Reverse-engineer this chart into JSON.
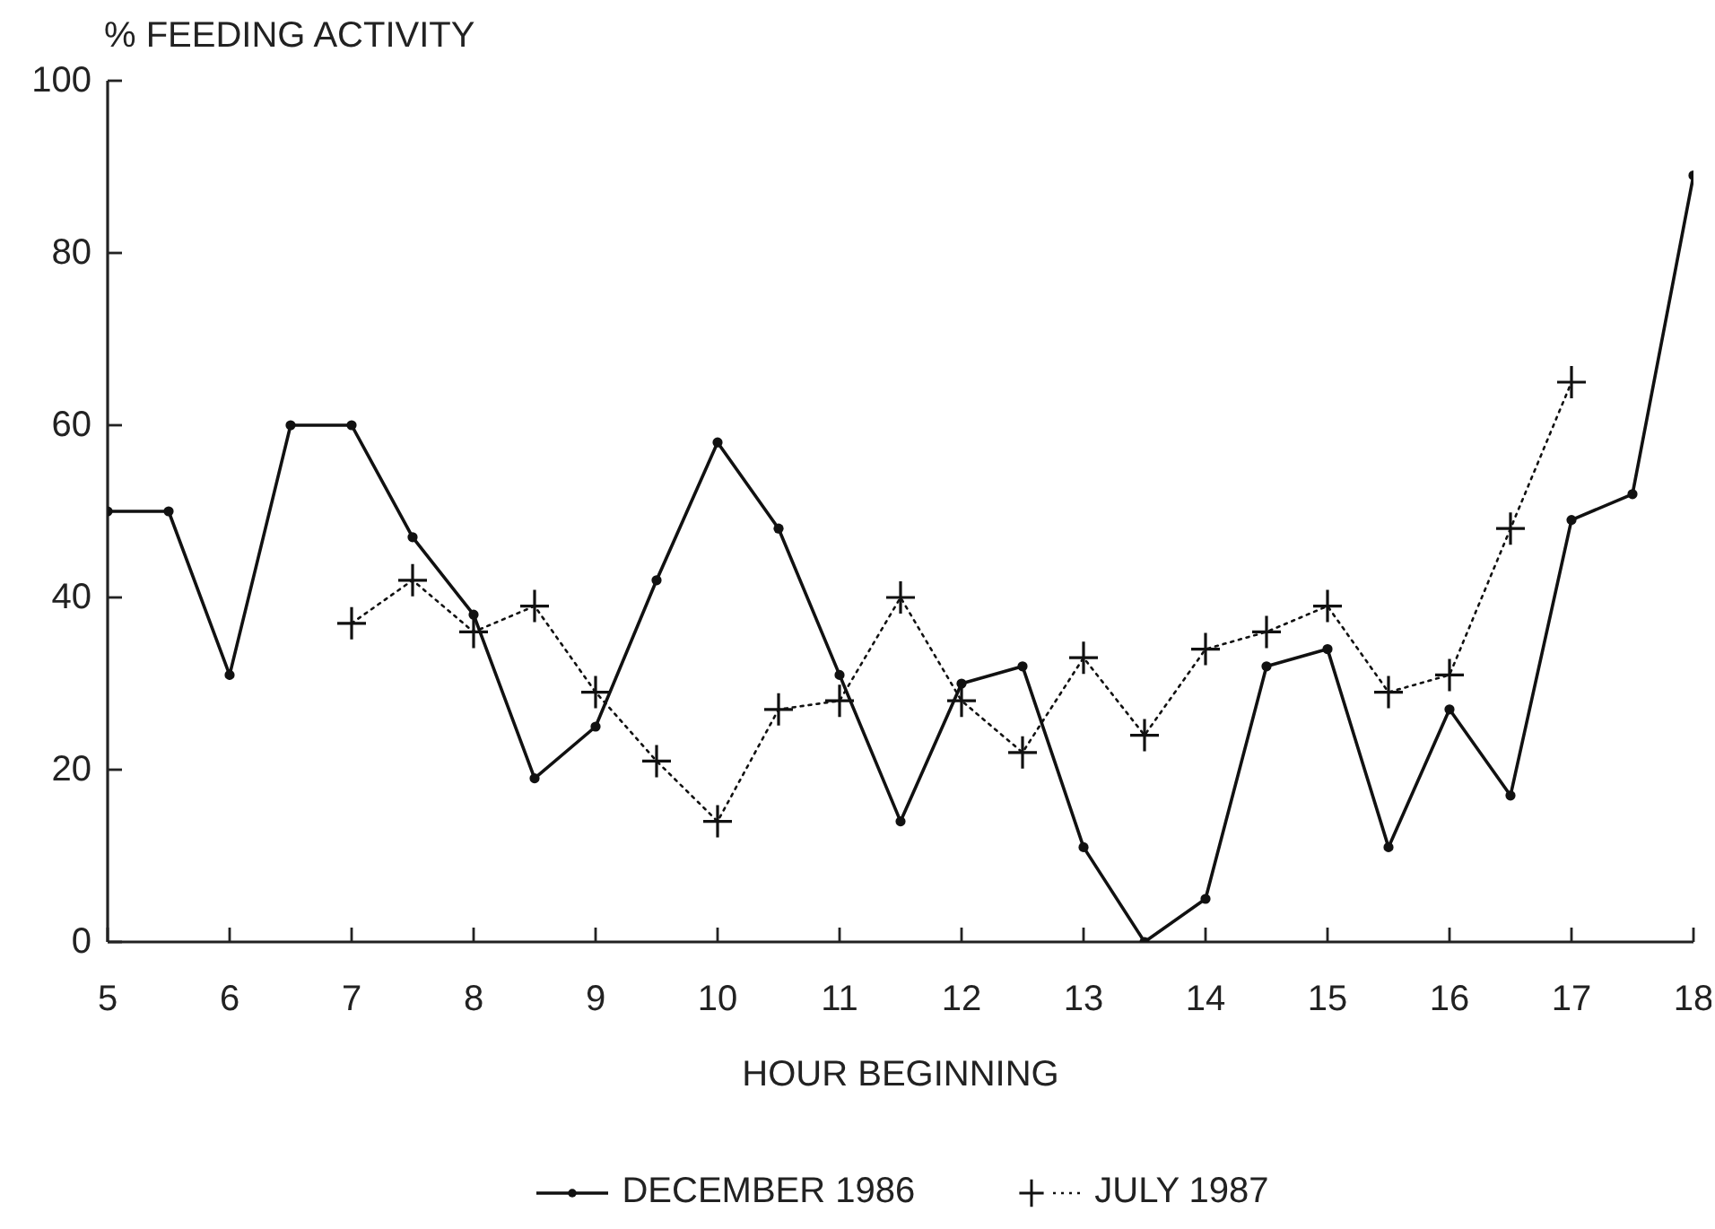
{
  "chart_data": {
    "type": "line",
    "ylabel": "% FEEDING ACTIVITY",
    "xlabel": "HOUR BEGINNING",
    "xlim": [
      5,
      18
    ],
    "xticks": [
      5,
      6,
      7,
      8,
      9,
      10,
      11,
      12,
      13,
      14,
      15,
      16,
      17,
      18
    ],
    "ylim": [
      0,
      100
    ],
    "yticks": [
      0,
      20,
      40,
      60,
      80,
      100
    ],
    "legend": "bottom",
    "series": [
      {
        "name": "DECEMBER 1986",
        "color": "#111111",
        "marker": "circle",
        "line_style": "solid",
        "x": [
          5,
          5.5,
          6,
          6.5,
          7,
          7.5,
          8,
          8.5,
          9,
          9.5,
          10,
          10.5,
          11,
          11.5,
          12,
          12.5,
          13,
          13.5,
          14,
          14.5,
          15,
          15.5,
          16,
          16.5,
          17,
          17.5,
          18
        ],
        "values": [
          50,
          50,
          31,
          60,
          60,
          47,
          38,
          19,
          25,
          42,
          58,
          48,
          31,
          14,
          30,
          32,
          11,
          0,
          5,
          32,
          34,
          11,
          27,
          17,
          49,
          52,
          89
        ]
      },
      {
        "name": "JULY 1987",
        "color": "#111111",
        "marker": "cross",
        "line_style": "dotted",
        "x": [
          7,
          7.5,
          8,
          8.5,
          9,
          9.5,
          10,
          10.5,
          11,
          11.5,
          12,
          12.5,
          13,
          13.5,
          14,
          14.5,
          15,
          15.5,
          16,
          16.5,
          17
        ],
        "values": [
          37,
          42,
          36,
          39,
          29,
          21,
          14,
          27,
          28,
          40,
          28,
          22,
          33,
          24,
          34,
          36,
          39,
          29,
          31,
          48,
          65
        ]
      }
    ]
  }
}
